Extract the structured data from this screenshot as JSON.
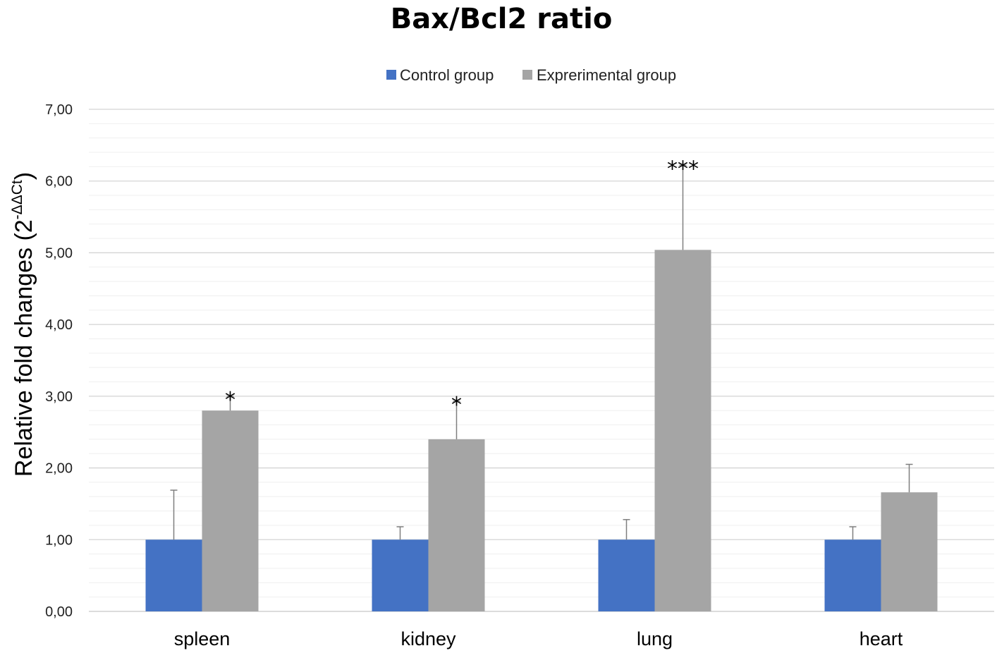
{
  "chart_data": {
    "type": "bar",
    "title": "Bax/Bcl2 ratio",
    "xlabel": "",
    "ylabel": {
      "base": "Relative fold changes (2",
      "superscript": "-ΔΔCt",
      "close": ")"
    },
    "ylim": [
      0,
      7
    ],
    "major_step": 1,
    "minor_step": 0.2,
    "yticks": [
      "0,00",
      "1,00",
      "2,00",
      "3,00",
      "4,00",
      "5,00",
      "6,00",
      "7,00"
    ],
    "categories": [
      "spleen",
      "kidney",
      "lung",
      "heart"
    ],
    "series": [
      {
        "name": "Control group",
        "color": "#4472c4",
        "values": [
          1.0,
          1.0,
          1.0,
          1.0
        ],
        "errors": [
          0.69,
          0.18,
          0.28,
          0.18
        ]
      },
      {
        "name": "Exprerimental group",
        "color": "#a5a5a5",
        "values": [
          2.8,
          2.4,
          5.04,
          1.66
        ],
        "errors": [
          0.2,
          0.53,
          1.18,
          0.39
        ]
      }
    ],
    "significance": [
      "*",
      "*",
      "***",
      ""
    ],
    "legend_position": "top-center",
    "grid": true
  }
}
